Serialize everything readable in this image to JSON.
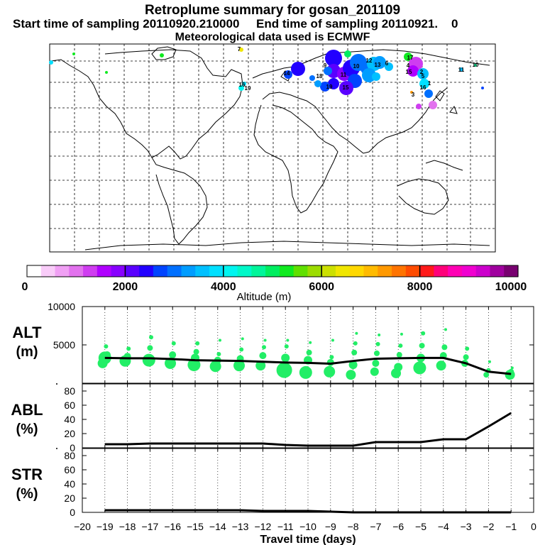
{
  "header": {
    "title": "Retroplume summary for gosan_201109",
    "start_label": "Start time of sampling",
    "start_value": "20110920.210000",
    "end_label": "End time of sampling",
    "end_value": "20110921.",
    "end_suffix": "0",
    "met_line": "Meteorological data used is ECMWF"
  },
  "colorbar": {
    "label": "Altitude (m)",
    "ticks": [
      "0",
      "2000",
      "4000",
      "6000",
      "8000",
      "10000"
    ],
    "colors": [
      "#ffffff",
      "#f9ccf9",
      "#f0a0f4",
      "#e272ee",
      "#cf3df0",
      "#b000ff",
      "#8800ff",
      "#5a00ff",
      "#2200ff",
      "#0044ff",
      "#0070ff",
      "#009dff",
      "#00c0ff",
      "#00e0ff",
      "#00f5f0",
      "#00f8c8",
      "#00f59a",
      "#00ee60",
      "#10ea20",
      "#60e000",
      "#9cdc00",
      "#cce000",
      "#f0e600",
      "#ffd800",
      "#ffbb00",
      "#ff9900",
      "#ff7400",
      "#ff4c00",
      "#ff1a1a",
      "#ff007a",
      "#ff00b4",
      "#f000d0",
      "#cc00cc",
      "#a0009f",
      "#780070"
    ]
  },
  "map": {
    "labels": [
      {
        "text": "7",
        "cls": "a"
      },
      {
        "text": "9",
        "cls": "b"
      },
      {
        "text": "10",
        "cls": "c"
      },
      {
        "text": "11",
        "cls": "d"
      },
      {
        "text": "12",
        "cls": "e"
      },
      {
        "text": "13",
        "cls": "f"
      },
      {
        "text": "14",
        "cls": "g"
      },
      {
        "text": "15",
        "cls": "h"
      },
      {
        "text": "16",
        "cls": "i"
      },
      {
        "text": "17",
        "cls": "j"
      },
      {
        "text": "18",
        "cls": "k"
      },
      {
        "text": "19",
        "cls": "l"
      },
      {
        "text": "4",
        "cls": "m"
      },
      {
        "text": "5",
        "cls": "n"
      },
      {
        "text": "6",
        "cls": "o"
      },
      {
        "text": "3",
        "cls": "p"
      },
      {
        "text": "2",
        "cls": "q"
      },
      {
        "text": "1",
        "cls": "r"
      },
      {
        "text": "16",
        "cls": "s"
      },
      {
        "text": "19",
        "cls": "t"
      },
      {
        "text": "15",
        "cls": "u"
      },
      {
        "text": "10",
        "cls": "v"
      },
      {
        "text": "11",
        "cls": "w"
      }
    ]
  },
  "chart_data": [
    {
      "type": "line",
      "panel": "ALT",
      "ylabel_top": "ALT",
      "ylabel_bottom": "(m)",
      "ylim": [
        0,
        10000
      ],
      "ytick_labels": [
        "10000",
        "5000"
      ],
      "ytick_values": [
        10000,
        5000
      ],
      "x": [
        -19,
        -18,
        -17,
        -16,
        -15,
        -14,
        -13,
        -12,
        -11,
        -10,
        -9,
        -8,
        -7,
        -6,
        -5,
        -4,
        -3,
        -2,
        -1
      ],
      "mean_altitude": [
        3300,
        3250,
        3250,
        3150,
        3000,
        2950,
        2900,
        2800,
        2700,
        2650,
        2550,
        2900,
        3200,
        3250,
        3300,
        3300,
        2600,
        1500,
        1200
      ],
      "scatter_points": [
        [
          -19.1,
          2600
        ],
        [
          -19.0,
          3300
        ],
        [
          -18.95,
          4800
        ],
        [
          -18.9,
          3700
        ],
        [
          -18.1,
          2900
        ],
        [
          -18.0,
          3500
        ],
        [
          -17.95,
          4500
        ],
        [
          -17.05,
          3000
        ],
        [
          -17.0,
          4600
        ],
        [
          -16.95,
          6000
        ],
        [
          -16.1,
          2600
        ],
        [
          -16.0,
          3700
        ],
        [
          -15.95,
          5200
        ],
        [
          -15.05,
          2400
        ],
        [
          -15.0,
          3300
        ],
        [
          -14.95,
          4100
        ],
        [
          -14.9,
          5200
        ],
        [
          -14.1,
          2200
        ],
        [
          -14.0,
          3000
        ],
        [
          -13.95,
          3800
        ],
        [
          -13.9,
          5600
        ],
        [
          -13.05,
          2300
        ],
        [
          -13.0,
          3200
        ],
        [
          -12.95,
          4400
        ],
        [
          -12.9,
          5800
        ],
        [
          -12.1,
          2300
        ],
        [
          -12.0,
          3600
        ],
        [
          -11.95,
          4700
        ],
        [
          -11.9,
          5600
        ],
        [
          -11.05,
          1700
        ],
        [
          -11.0,
          3300
        ],
        [
          -10.95,
          4800
        ],
        [
          -10.9,
          5600
        ],
        [
          -10.1,
          1400
        ],
        [
          -10.0,
          3000
        ],
        [
          -9.95,
          4000
        ],
        [
          -9.9,
          5300
        ],
        [
          -9.05,
          1500
        ],
        [
          -9.0,
          2700
        ],
        [
          -8.95,
          3400
        ],
        [
          -8.9,
          5600
        ],
        [
          -8.1,
          1100
        ],
        [
          -8.0,
          2400
        ],
        [
          -7.95,
          4000
        ],
        [
          -7.9,
          5200
        ],
        [
          -7.85,
          6500
        ],
        [
          -7.05,
          1500
        ],
        [
          -7.0,
          2600
        ],
        [
          -6.95,
          3900
        ],
        [
          -6.9,
          5100
        ],
        [
          -6.85,
          6300
        ],
        [
          -6.1,
          1300
        ],
        [
          -6.0,
          2100
        ],
        [
          -5.95,
          3700
        ],
        [
          -5.9,
          4900
        ],
        [
          -5.85,
          6400
        ],
        [
          -5.05,
          2000
        ],
        [
          -5.0,
          3300
        ],
        [
          -4.95,
          4900
        ],
        [
          -4.9,
          6500
        ],
        [
          -4.1,
          2300
        ],
        [
          -4.0,
          3600
        ],
        [
          -3.95,
          4700
        ],
        [
          -3.9,
          7000
        ],
        [
          -3.05,
          2600
        ],
        [
          -3.0,
          3400
        ],
        [
          -2.95,
          4500
        ],
        [
          -2.1,
          1100
        ],
        [
          -2.0,
          1700
        ],
        [
          -1.95,
          2800
        ],
        [
          -1.05,
          1100
        ],
        [
          -1.0,
          1500
        ],
        [
          -0.95,
          2000
        ]
      ],
      "scatter_sizes": [
        7,
        9,
        3,
        5,
        8,
        5,
        3,
        9,
        4,
        3,
        8,
        5,
        3,
        9,
        6,
        4,
        3,
        8,
        5,
        3,
        2,
        8,
        5,
        3,
        2,
        7,
        5,
        3,
        2,
        11,
        6,
        3,
        2,
        9,
        6,
        4,
        2,
        8,
        5,
        3,
        2,
        7,
        6,
        4,
        3,
        2,
        6,
        5,
        4,
        3,
        2,
        7,
        6,
        4,
        3,
        2,
        9,
        6,
        4,
        3,
        7,
        5,
        4,
        2,
        5,
        4,
        3,
        4,
        3,
        2,
        7,
        4,
        2
      ]
    },
    {
      "type": "line",
      "panel": "ABL",
      "ylabel_top": "ABL",
      "ylabel_bottom": "(%)",
      "ylim": [
        0,
        90
      ],
      "ytick_labels": [
        "80",
        "60",
        "40",
        "20",
        "0"
      ],
      "ytick_values": [
        80,
        60,
        40,
        20,
        0
      ],
      "x": [
        -19,
        -18,
        -17,
        -16,
        -15,
        -14,
        -13,
        -12,
        -11,
        -10,
        -9,
        -8,
        -7,
        -6,
        -5,
        -4,
        -3,
        -2,
        -1
      ],
      "y": [
        5,
        5,
        6,
        6,
        6,
        6,
        6,
        6,
        4,
        3,
        3,
        3,
        8,
        8,
        8,
        12,
        12,
        30,
        49
      ]
    },
    {
      "type": "line",
      "panel": "STR",
      "ylabel_top": "STR",
      "ylabel_bottom": "(%)",
      "ylim": [
        0,
        90
      ],
      "ytick_labels": [
        "80",
        "60",
        "40",
        "20",
        "0"
      ],
      "ytick_values": [
        80,
        60,
        40,
        20,
        0
      ],
      "x": [
        -19,
        -18,
        -17,
        -16,
        -15,
        -14,
        -13,
        -12,
        -11,
        -10,
        -9,
        -8,
        -7,
        -6,
        -5,
        -4,
        -3,
        -2,
        -1
      ],
      "y": [
        3,
        3,
        3,
        3,
        3,
        3,
        3,
        2,
        2,
        2,
        1,
        0,
        0,
        0,
        0,
        0,
        0,
        0,
        0
      ]
    }
  ],
  "xaxis": {
    "xlabel": "Travel time (days)",
    "xlim": [
      -20,
      0
    ],
    "tick_labels": [
      "−20",
      "−19",
      "−18",
      "−17",
      "−16",
      "−15",
      "−14",
      "−13",
      "−12",
      "−11",
      "−10",
      "−9",
      "−8",
      "−7",
      "−6",
      "−5",
      "−4",
      "−3",
      "−2",
      "−1",
      "0"
    ]
  }
}
